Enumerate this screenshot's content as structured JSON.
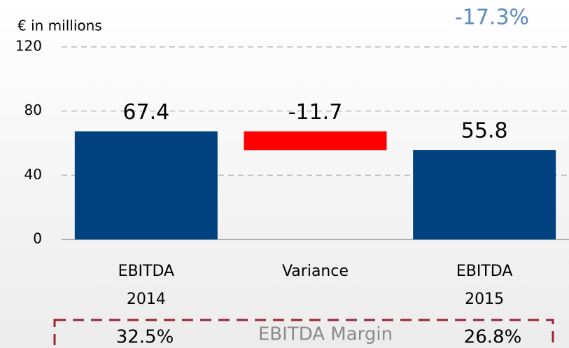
{
  "chart_data": {
    "type": "waterfall",
    "unit_label": "€ in millions",
    "annotation": "-17.3%",
    "categories": [
      [
        "EBITDA",
        "2014"
      ],
      [
        "Variance"
      ],
      [
        "EBITDA",
        "2015"
      ]
    ],
    "values": [
      67.4,
      -11.7,
      55.8
    ],
    "totals": [
      true,
      false,
      true
    ],
    "colors": [
      "#00427f",
      "#ff0000",
      "#00427f"
    ],
    "ylim": [
      0,
      120
    ],
    "yticks": [
      0,
      40,
      80,
      120
    ],
    "grid": true,
    "margin_label": "EBITDA Margin",
    "margins": [
      "32.5%",
      "26.8%"
    ]
  }
}
